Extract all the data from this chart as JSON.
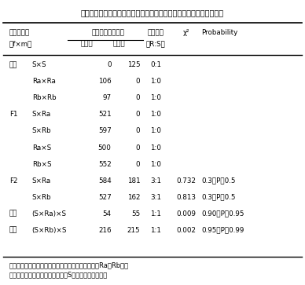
{
  "title": "表２　抵抗性個体と感受性個体の交配後代における抵抗性形質の分離",
  "rows": [
    [
      "自殖",
      "S×S",
      "0",
      "125",
      "0:1",
      "",
      ""
    ],
    [
      "",
      "Ra×Ra",
      "106",
      "0",
      "1:0",
      "",
      ""
    ],
    [
      "",
      "Rb×Rb",
      "97",
      "0",
      "1:0",
      "",
      ""
    ],
    [
      "F1",
      "S×Ra",
      "521",
      "0",
      "1:0",
      "",
      ""
    ],
    [
      "",
      "S×Rb",
      "597",
      "0",
      "1:0",
      "",
      ""
    ],
    [
      "",
      "Ra×S",
      "500",
      "0",
      "1:0",
      "",
      ""
    ],
    [
      "",
      "Rb×S",
      "552",
      "0",
      "1:0",
      "",
      ""
    ],
    [
      "F2",
      "S×Ra",
      "584",
      "181",
      "3:1",
      "0.732",
      "0.3＜P＜0.5"
    ],
    [
      "",
      "S×Rb",
      "527",
      "162",
      "3:1",
      "0.813",
      "0.3＜P＜0.5"
    ],
    [
      "戻し",
      "(S×Ra)×S",
      "54",
      "55",
      "1:1",
      "0.009",
      "0.90＜P＜0.95"
    ],
    [
      "交配",
      "(S×Rb)×S",
      "216",
      "215",
      "1:1",
      "0.002",
      "0.95＜P＜0.99"
    ]
  ],
  "footnote1": "採取水田の異なる北海道長沼町産の抵抗性２個体（Ra、Rb）と",
  "footnote2": "秋田県神岡町産の感受性１個体（S）を交配に用いた。",
  "bg_color": "#ffffff",
  "text_color": "#000000"
}
